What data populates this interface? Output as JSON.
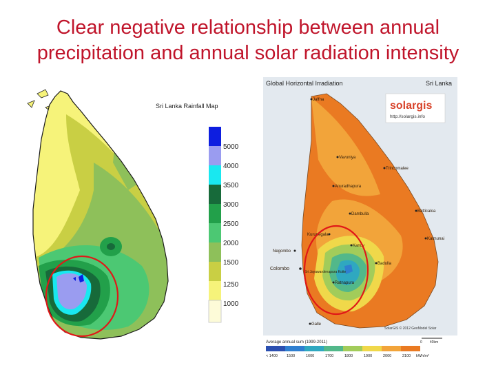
{
  "slide": {
    "title_line1": "Clear negative relationship between annual",
    "title_line2": "precipitation and annual solar radiation intensity"
  },
  "rainfall_map": {
    "title": "Sri Lanka Rainfall Map",
    "legend": [
      {
        "label": "5000",
        "color": "#0d1ee0"
      },
      {
        "label": "4000",
        "color": "#9a9cf0"
      },
      {
        "label": "3500",
        "color": "#19e8f0"
      },
      {
        "label": "3000",
        "color": "#176a3a"
      },
      {
        "label": "2500",
        "color": "#22a04a"
      },
      {
        "label": "2000",
        "color": "#4cc873"
      },
      {
        "label": "1500",
        "color": "#8ec05a"
      },
      {
        "label": "1250",
        "color": "#c9cf44"
      },
      {
        "label": "1000",
        "color": "#f6f37a"
      }
    ],
    "legend_bottom_color": "#fdfbd8"
  },
  "solar_map": {
    "title_left": "Global Horizontal Irradiation",
    "title_right": "Sri Lanka",
    "logo": "solargis",
    "logo_url": "http://solargis.info",
    "cities": [
      {
        "name": "Jaffna"
      },
      {
        "name": "Vavuniya"
      },
      {
        "name": "Trincomalee"
      },
      {
        "name": "Anuradhapura"
      },
      {
        "name": "Dambulla"
      },
      {
        "name": "Batticaloa"
      },
      {
        "name": "Kurunegala"
      },
      {
        "name": "Kalmunai"
      },
      {
        "name": "Negombo"
      },
      {
        "name": "Kandy"
      },
      {
        "name": "Colombo"
      },
      {
        "name": "Badulla"
      },
      {
        "name": "Sri Jayawardenapura Kotte"
      },
      {
        "name": "Ratnapura"
      },
      {
        "name": "Galle"
      }
    ],
    "copyright": "SolarGIS © 2012 GeoModel Solar",
    "scale_label": "0        40km",
    "legend_title": "Average annual sum (1999-2011)",
    "legend_unit": "kWh/m²",
    "legend": [
      {
        "label": "< 1400",
        "color": "#2b4fb0"
      },
      {
        "label": "1500",
        "color": "#2f7fd0"
      },
      {
        "label": "1600",
        "color": "#2fa8c0"
      },
      {
        "label": "1700",
        "color": "#52b88a"
      },
      {
        "label": "1800",
        "color": "#a2cc5a"
      },
      {
        "label": "1900",
        "color": "#f0d84a"
      },
      {
        "label": "2000",
        "color": "#f2a43a"
      },
      {
        "label": "2100",
        "color": "#ea7a22"
      }
    ]
  }
}
